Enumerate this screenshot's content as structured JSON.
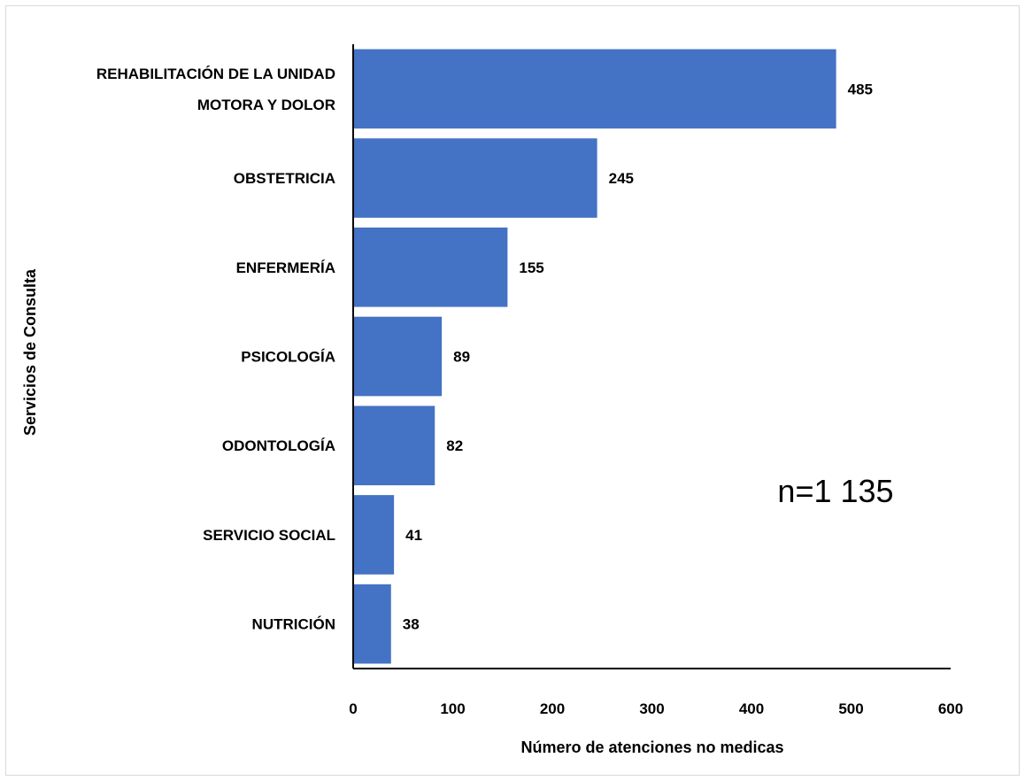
{
  "chart_data": {
    "type": "bar",
    "orientation": "horizontal",
    "categories": [
      [
        "REHABILITACIÓN DE LA UNIDAD",
        "MOTORA Y DOLOR"
      ],
      [
        "OBSTETRICIA"
      ],
      [
        "ENFERMERÍA"
      ],
      [
        "PSICOLOGÍA"
      ],
      [
        "ODONTOLOGÍA"
      ],
      [
        "SERVICIO SOCIAL"
      ],
      [
        "NUTRICIÓN"
      ]
    ],
    "values": [
      485,
      245,
      155,
      89,
      82,
      41,
      38
    ],
    "value_labels": [
      "485",
      "245",
      "155",
      "89",
      "82",
      "41",
      "38"
    ],
    "xlabel": "Número de atenciones no medicas",
    "ylabel": "Servicios de Consulta",
    "xlim": [
      0,
      600
    ],
    "x_ticks": [
      "0",
      "100",
      "200",
      "300",
      "400",
      "500",
      "600"
    ],
    "annotation": "n=1 135",
    "bar_color": "#4472C4",
    "grid": false
  }
}
